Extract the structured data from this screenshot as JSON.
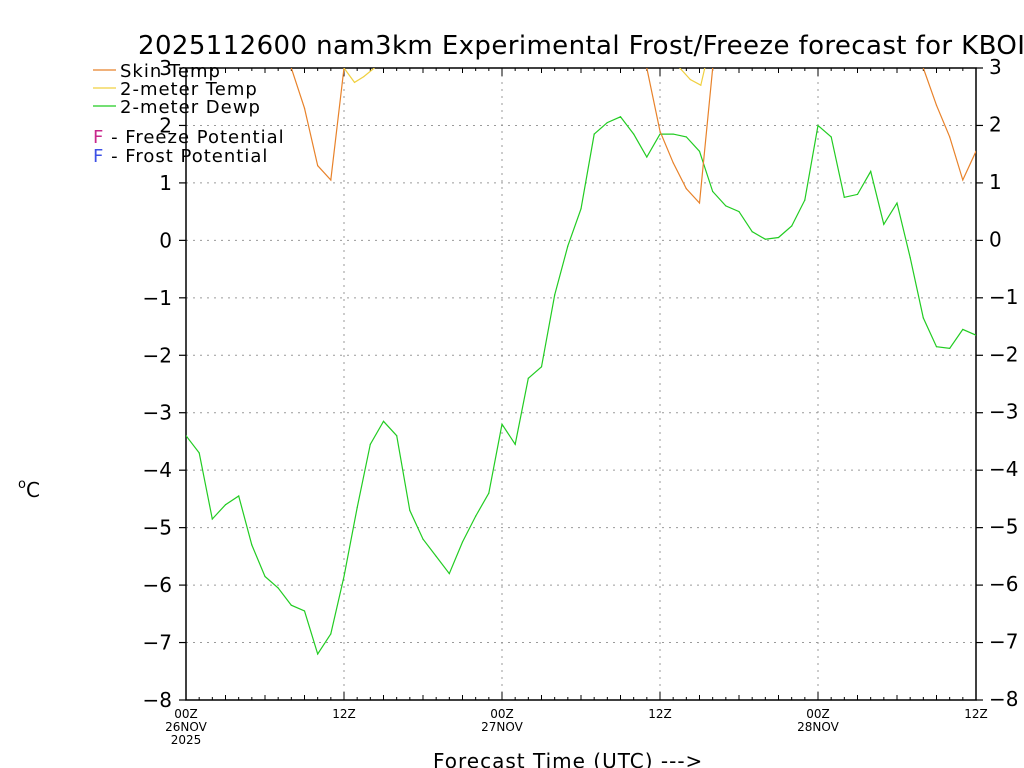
{
  "chart_data": {
    "type": "line",
    "title": "2025112600 nam3km Experimental Frost/Freeze forecast for KBOI",
    "xlabel": "Forecast Time (UTC) --->",
    "ylabel": "°C",
    "ylabel_super": "o",
    "ylabel_main": "C",
    "ylim": [
      -8,
      3
    ],
    "xlim": [
      0,
      60
    ],
    "grid": true,
    "legend": [
      {
        "name": "Skin Temp",
        "color": "#e8822a"
      },
      {
        "name": "2-meter Temp",
        "color": "#f0d040"
      },
      {
        "name": "2-meter Dewp",
        "color": "#22cc22"
      }
    ],
    "potential_legend": [
      {
        "letter": "F",
        "text": " - Freeze Potential",
        "color": "#c8288c"
      },
      {
        "letter": "F",
        "text": " - Frost Potential",
        "color": "#3c50e6"
      }
    ],
    "yticks": [
      -8,
      -7,
      -6,
      -5,
      -4,
      -3,
      -2,
      -1,
      0,
      1,
      2,
      3
    ],
    "xticks": [
      {
        "hour": 0,
        "lines": [
          "00Z",
          "26NOV",
          "2025"
        ]
      },
      {
        "hour": 12,
        "lines": [
          "12Z"
        ]
      },
      {
        "hour": 24,
        "lines": [
          "00Z",
          "27NOV"
        ]
      },
      {
        "hour": 36,
        "lines": [
          "12Z"
        ]
      },
      {
        "hour": 48,
        "lines": [
          "00Z",
          "28NOV"
        ]
      },
      {
        "hour": 60,
        "lines": [
          "12Z"
        ]
      }
    ],
    "series": [
      {
        "name": "2-meter Dewp",
        "color": "#22cc22",
        "x": [
          0,
          1,
          2,
          3,
          4,
          5,
          6,
          7,
          8,
          9,
          10,
          11,
          12,
          13,
          14,
          15,
          16,
          17,
          18,
          19,
          20,
          21,
          22,
          23,
          24,
          25,
          26,
          27,
          28,
          29,
          30,
          31,
          32,
          33,
          34,
          35,
          36,
          37,
          38,
          39,
          40,
          41,
          42,
          43,
          44,
          45,
          46,
          47,
          48,
          49,
          50,
          51,
          52,
          53,
          54,
          55,
          56,
          57,
          58,
          59,
          60
        ],
        "values": [
          -3.4,
          -3.7,
          -4.85,
          -4.6,
          -4.45,
          -5.3,
          -5.85,
          -6.05,
          -6.35,
          -6.45,
          -7.2,
          -6.85,
          -5.85,
          -4.65,
          -3.55,
          -3.15,
          -3.4,
          -4.7,
          -5.2,
          -5.5,
          -5.8,
          -5.25,
          -4.8,
          -4.4,
          -3.2,
          -3.55,
          -2.4,
          -2.2,
          -0.95,
          -0.1,
          0.55,
          1.85,
          2.05,
          2.15,
          1.85,
          1.45,
          1.85,
          1.85,
          1.8,
          1.55,
          0.85,
          0.6,
          0.5,
          0.15,
          0.02,
          0.05,
          0.25,
          0.7,
          2.0,
          1.8,
          0.75,
          0.8,
          1.2,
          0.28,
          0.65,
          -0.3,
          -1.35,
          -1.85,
          -1.88,
          -1.55,
          -1.65
        ]
      },
      {
        "name": "Skin Temp",
        "color": "#e8822a",
        "x": [
          8,
          9,
          10,
          11,
          12,
          35,
          36,
          37,
          38,
          39,
          40,
          56,
          57,
          58,
          59,
          60
        ],
        "values": [
          3.0,
          2.3,
          1.3,
          1.05,
          3.0,
          3.0,
          1.9,
          1.35,
          0.9,
          0.65,
          3.0,
          3.0,
          2.35,
          1.8,
          1.05,
          1.55
        ]
      },
      {
        "name": "2-meter Temp",
        "color": "#f0d040",
        "x": [
          12,
          12.8,
          13.5,
          14.3,
          37.5,
          38.3,
          39.1,
          39.4
        ],
        "values": [
          3.0,
          2.75,
          2.85,
          3.0,
          3.0,
          2.8,
          2.7,
          3.0
        ]
      }
    ]
  }
}
